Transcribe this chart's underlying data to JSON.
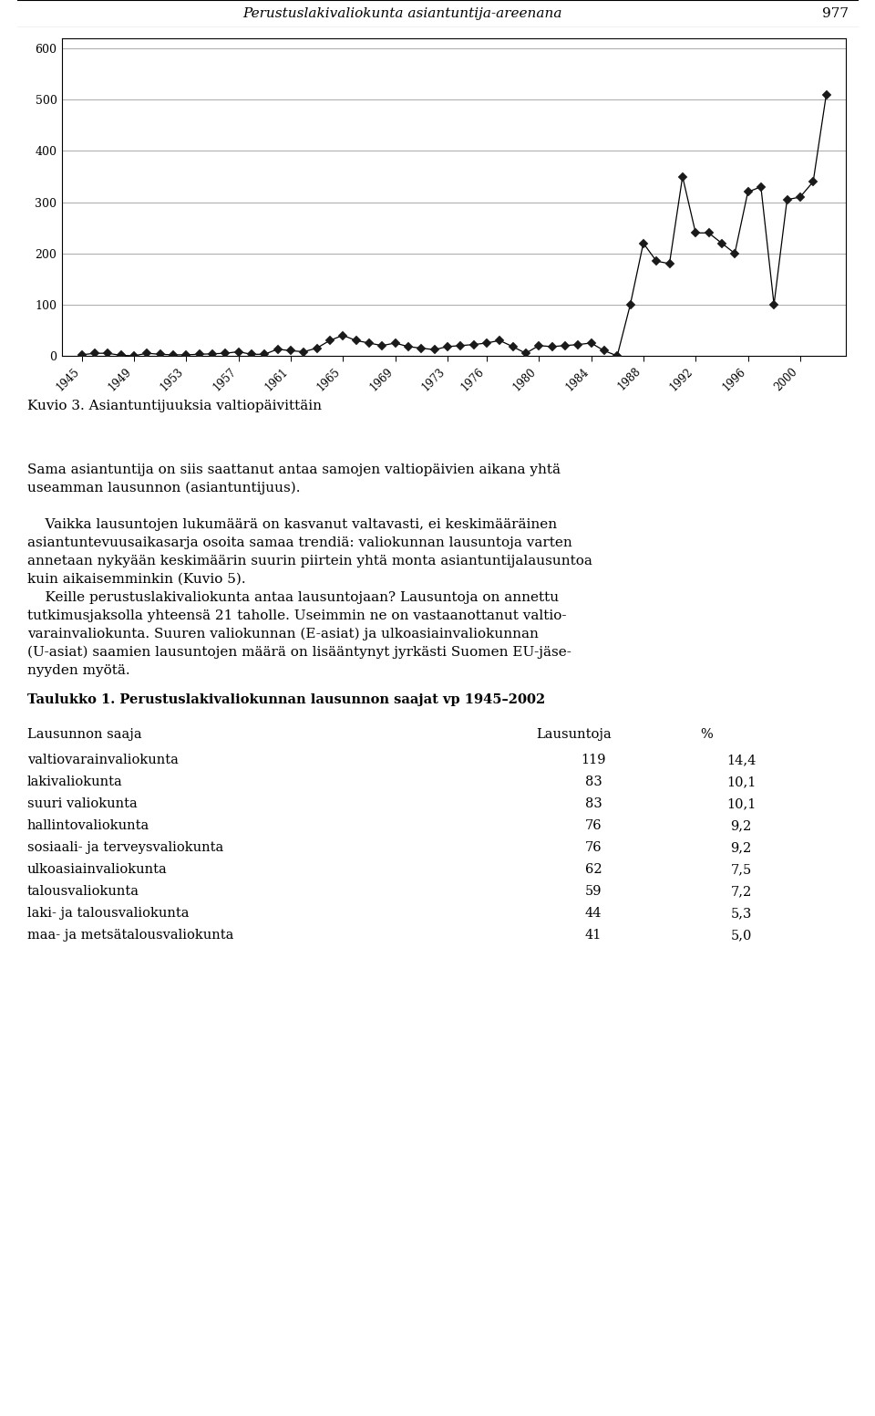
{
  "title": "Perustuslakivaliokunta asiantuntija-areenana",
  "page_number": "977",
  "chart_caption": "Kuvio 3. Asiantuntijuuksia valtiopäivittäin",
  "years": [
    1945,
    1946,
    1947,
    1948,
    1949,
    1950,
    1951,
    1952,
    1953,
    1954,
    1955,
    1956,
    1957,
    1958,
    1959,
    1960,
    1961,
    1962,
    1963,
    1964,
    1965,
    1966,
    1967,
    1968,
    1969,
    1970,
    1971,
    1972,
    1973,
    1974,
    1975,
    1976,
    1977,
    1978,
    1979,
    1980,
    1981,
    1982,
    1983,
    1984,
    1985,
    1986,
    1987,
    1988,
    1989,
    1990,
    1991,
    1992,
    1993,
    1994,
    1995,
    1996,
    1997,
    1998,
    1999,
    2000,
    2001,
    2002
  ],
  "values": [
    2,
    5,
    5,
    1,
    0,
    5,
    3,
    2,
    2,
    3,
    4,
    5,
    8,
    3,
    3,
    13,
    10,
    8,
    15,
    30,
    40,
    30,
    25,
    20,
    25,
    18,
    15,
    12,
    18,
    20,
    22,
    25,
    30,
    18,
    5,
    20,
    18,
    20,
    22,
    25,
    10,
    0,
    100,
    220,
    185,
    180,
    350,
    240,
    240,
    220,
    200,
    320,
    330,
    100,
    305,
    310,
    340,
    510
  ],
  "yticks": [
    0,
    100,
    200,
    300,
    400,
    500,
    600
  ],
  "xtick_years": [
    1945,
    1949,
    1953,
    1957,
    1961,
    1965,
    1969,
    1973,
    1976,
    1980,
    1984,
    1988,
    1992,
    1996,
    2000
  ],
  "ylim": [
    0,
    620
  ],
  "xlim": [
    1943.5,
    2003.5
  ],
  "line_color": "#000000",
  "marker_size": 5,
  "marker_facecolor": "#1a1a1a",
  "bg_color": "#ffffff",
  "body_lines": [
    "Sama asiantuntija on siis saattanut antaa samojen valtiopäivien aikana yhtä",
    "useamman lausunnon (asiantuntijuus).",
    "",
    "    Vaikka lausuntojen lukumäärä on kasvanut valtavasti, ei keskimääräinen",
    "asiantuntevuusaikasarja osoita samaa trendiä: valiokunnan lausuntoja varten",
    "annetaan nykyään keskimäärin suurin piirtein yhtä monta asiantuntijalausuntoa",
    "kuin aikaisemminkin (Kuvio 5).",
    "    Keille perustuslakivaliokunta antaa lausuntojaan? Lausuntoja on annettu",
    "tutkimusjaksolla yhteensä 21 taholle. Useimmin ne on vastaanottanut valtio-",
    "varainvaliokunta. Suuren valiokunnan (E-asiat) ja ulkoasiainvaliokunnan",
    "(U-asiat) saamien lausuntojen määrä on lisääntynyt jyrkästi Suomen EU-jäse-",
    "nyyden myötä."
  ],
  "table_title": "Taulukko 1. Perustuslakivaliokunnan lausunnon saajat vp 1945–2002",
  "table_headers": [
    "Lausunnon saaja",
    "Lausuntoja",
    "%"
  ],
  "table_rows": [
    [
      "valtiovarainvaliokunta",
      "119",
      "14,4"
    ],
    [
      "lakivaliokunta",
      "83",
      "10,1"
    ],
    [
      "suuri valiokunta",
      "83",
      "10,1"
    ],
    [
      "hallintovaliokunta",
      "76",
      "9,2"
    ],
    [
      "sosiaali- ja terveysvaliokunta",
      "76",
      "9,2"
    ],
    [
      "ulkoasiainvaliokunta",
      "62",
      "7,5"
    ],
    [
      "talousvaliokunta",
      "59",
      "7,2"
    ],
    [
      "laki- ja talousvaliokunta",
      "44",
      "5,3"
    ],
    [
      "maa- ja metsätalousvaliokunta",
      "41",
      "5,0"
    ]
  ]
}
